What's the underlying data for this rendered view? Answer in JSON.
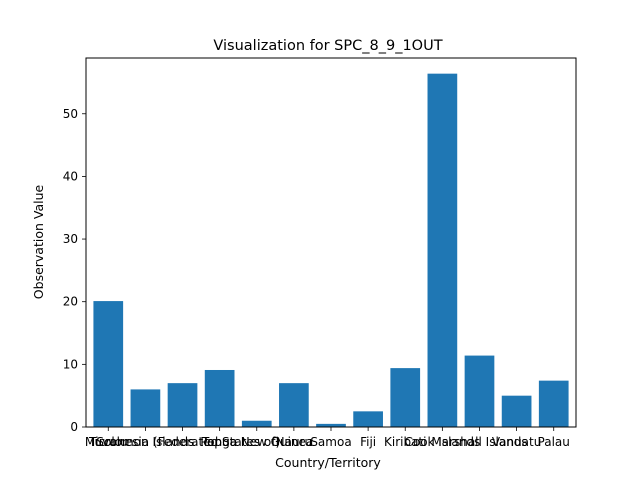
{
  "chart_data": {
    "type": "bar",
    "title": "Visualization for SPC_8_9_1OUT",
    "xlabel": "Country/Territory",
    "ylabel": "Observation Value",
    "categories": [
      "Tuvalu",
      "Solomon Islands",
      "Micronesia (Federated States of)",
      "Tonga",
      "Papua New Guinea",
      "Nauru",
      "Samoa",
      "Fiji",
      "Kiribati",
      "Cook Islands",
      "Marshall Islands",
      "Vanuatu",
      "Palau"
    ],
    "values": [
      20.1,
      6.0,
      7.0,
      9.1,
      1.0,
      7.0,
      0.5,
      2.5,
      9.4,
      56.4,
      11.4,
      5.0,
      7.4
    ],
    "ylim": [
      0,
      58.9
    ],
    "yticks": [
      0,
      10,
      20,
      30,
      40,
      50
    ],
    "bar_color": "#1f77b4",
    "grid": false,
    "legend": "none"
  }
}
